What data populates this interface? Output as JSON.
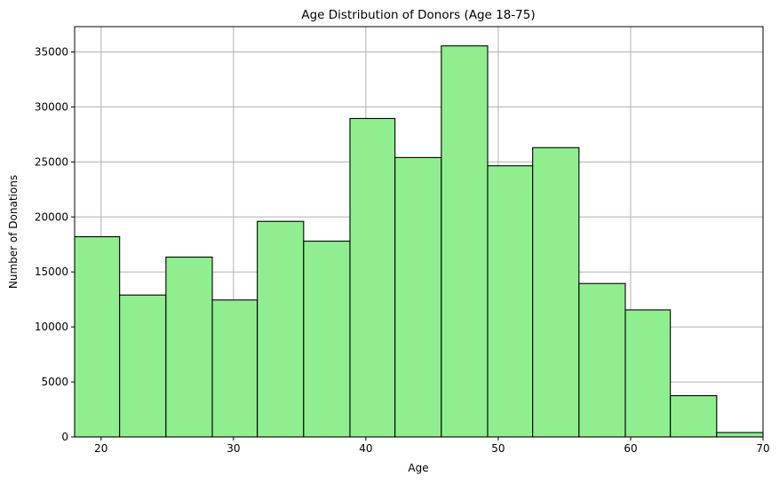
{
  "chart_data": {
    "type": "bar",
    "title": "Age Distribution of Donors (Age 18-75)",
    "xlabel": "Age",
    "ylabel": "Number of Donations",
    "xlim": [
      18,
      70
    ],
    "ylim": [
      0,
      37300
    ],
    "xticks": [
      20,
      30,
      40,
      50,
      60,
      70
    ],
    "yticks": [
      0,
      5000,
      10000,
      15000,
      20000,
      25000,
      30000,
      35000
    ],
    "grid": true,
    "bar_color": "#90ee90",
    "edge_color": "#000000",
    "bins": [
      {
        "x0": 18.0,
        "x1": 21.4,
        "value": 18200
      },
      {
        "x0": 21.4,
        "x1": 24.9,
        "value": 12900
      },
      {
        "x0": 24.9,
        "x1": 28.4,
        "value": 16350
      },
      {
        "x0": 28.4,
        "x1": 31.8,
        "value": 12450
      },
      {
        "x0": 31.8,
        "x1": 35.3,
        "value": 19600
      },
      {
        "x0": 35.3,
        "x1": 38.8,
        "value": 17800
      },
      {
        "x0": 38.8,
        "x1": 42.2,
        "value": 28950
      },
      {
        "x0": 42.2,
        "x1": 45.7,
        "value": 25400
      },
      {
        "x0": 45.7,
        "x1": 49.2,
        "value": 35550
      },
      {
        "x0": 49.2,
        "x1": 52.6,
        "value": 24650
      },
      {
        "x0": 52.6,
        "x1": 56.1,
        "value": 26300
      },
      {
        "x0": 56.1,
        "x1": 59.6,
        "value": 13950
      },
      {
        "x0": 59.6,
        "x1": 63.0,
        "value": 11550
      },
      {
        "x0": 63.0,
        "x1": 66.5,
        "value": 3750
      },
      {
        "x0": 66.5,
        "x1": 70.0,
        "value": 400
      }
    ]
  }
}
